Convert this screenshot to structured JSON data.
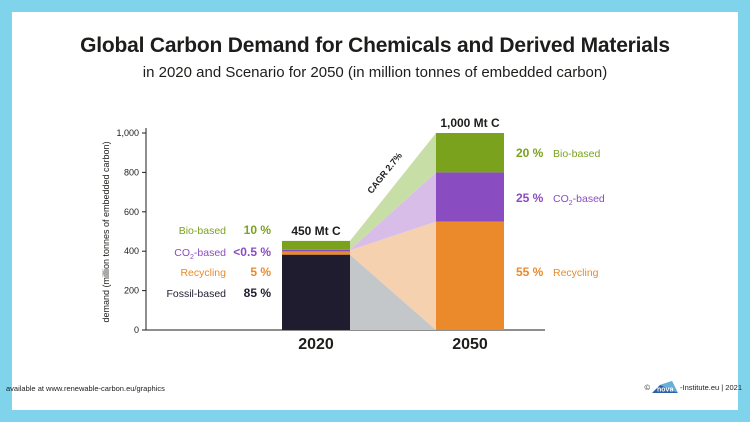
{
  "header": {
    "title": "Global Carbon Demand for Chemicals and Derived Materials",
    "subtitle": "in 2020 and Scenario for 2050 (in million tonnes of embedded carbon)"
  },
  "footer": {
    "source": "available at www.renewable-carbon.eu/graphics",
    "copyright_symbol": "©",
    "logo_text": "nova",
    "credit": "-Institute.eu | 2021"
  },
  "colors": {
    "fossil": "#1e1c2e",
    "recycling": "#ea8a2b",
    "co2": "#8a4cc1",
    "bio": "#7aa21d",
    "recycling_light": "#f6d1b0",
    "co2_light": "#d9bde9",
    "bio_light": "#c8dea7",
    "fossil_light": "#c3c7c9",
    "background": "#7fd3ea"
  },
  "chart_data": {
    "type": "bar",
    "stacked": true,
    "ylabel": "demand  (million tonnes of embedded carbon)",
    "ylim": [
      0,
      1000
    ],
    "yticks": [
      0,
      200,
      400,
      600,
      800,
      1000
    ],
    "ytick_labels": [
      "0",
      "200",
      "400",
      "600",
      "800",
      "1,000"
    ],
    "categories": [
      "2020",
      "2050"
    ],
    "totals_labels": [
      "450 Mt C",
      "1,000 Mt C"
    ],
    "series": [
      {
        "key": "fossil",
        "values": [
          382.5,
          0
        ]
      },
      {
        "key": "recycling",
        "values": [
          22.5,
          550
        ]
      },
      {
        "key": "co2",
        "values": [
          2.25,
          250
        ]
      },
      {
        "key": "bio",
        "values": [
          45,
          200
        ]
      }
    ],
    "legend_2020": [
      {
        "key": "bio",
        "label": "Bio-based",
        "pct": "10 %"
      },
      {
        "key": "co2",
        "label_main": "CO",
        "label_sub": "2",
        "label_rest": "-based",
        "pct": "<0.5 %"
      },
      {
        "key": "recycling",
        "label": "Recycling",
        "pct": "5 %"
      },
      {
        "key": "fossil",
        "label": "Fossil-based",
        "pct": "85 %"
      }
    ],
    "legend_2050": [
      {
        "key": "bio",
        "pct": "20 %",
        "label": "Bio-based"
      },
      {
        "key": "co2",
        "pct": "25 %",
        "label_main": "CO",
        "label_sub": "2",
        "label_rest": "-based"
      },
      {
        "key": "recycling",
        "pct": "55 %",
        "label": "Recycling"
      }
    ],
    "annotation": "CAGR 2.7%"
  }
}
